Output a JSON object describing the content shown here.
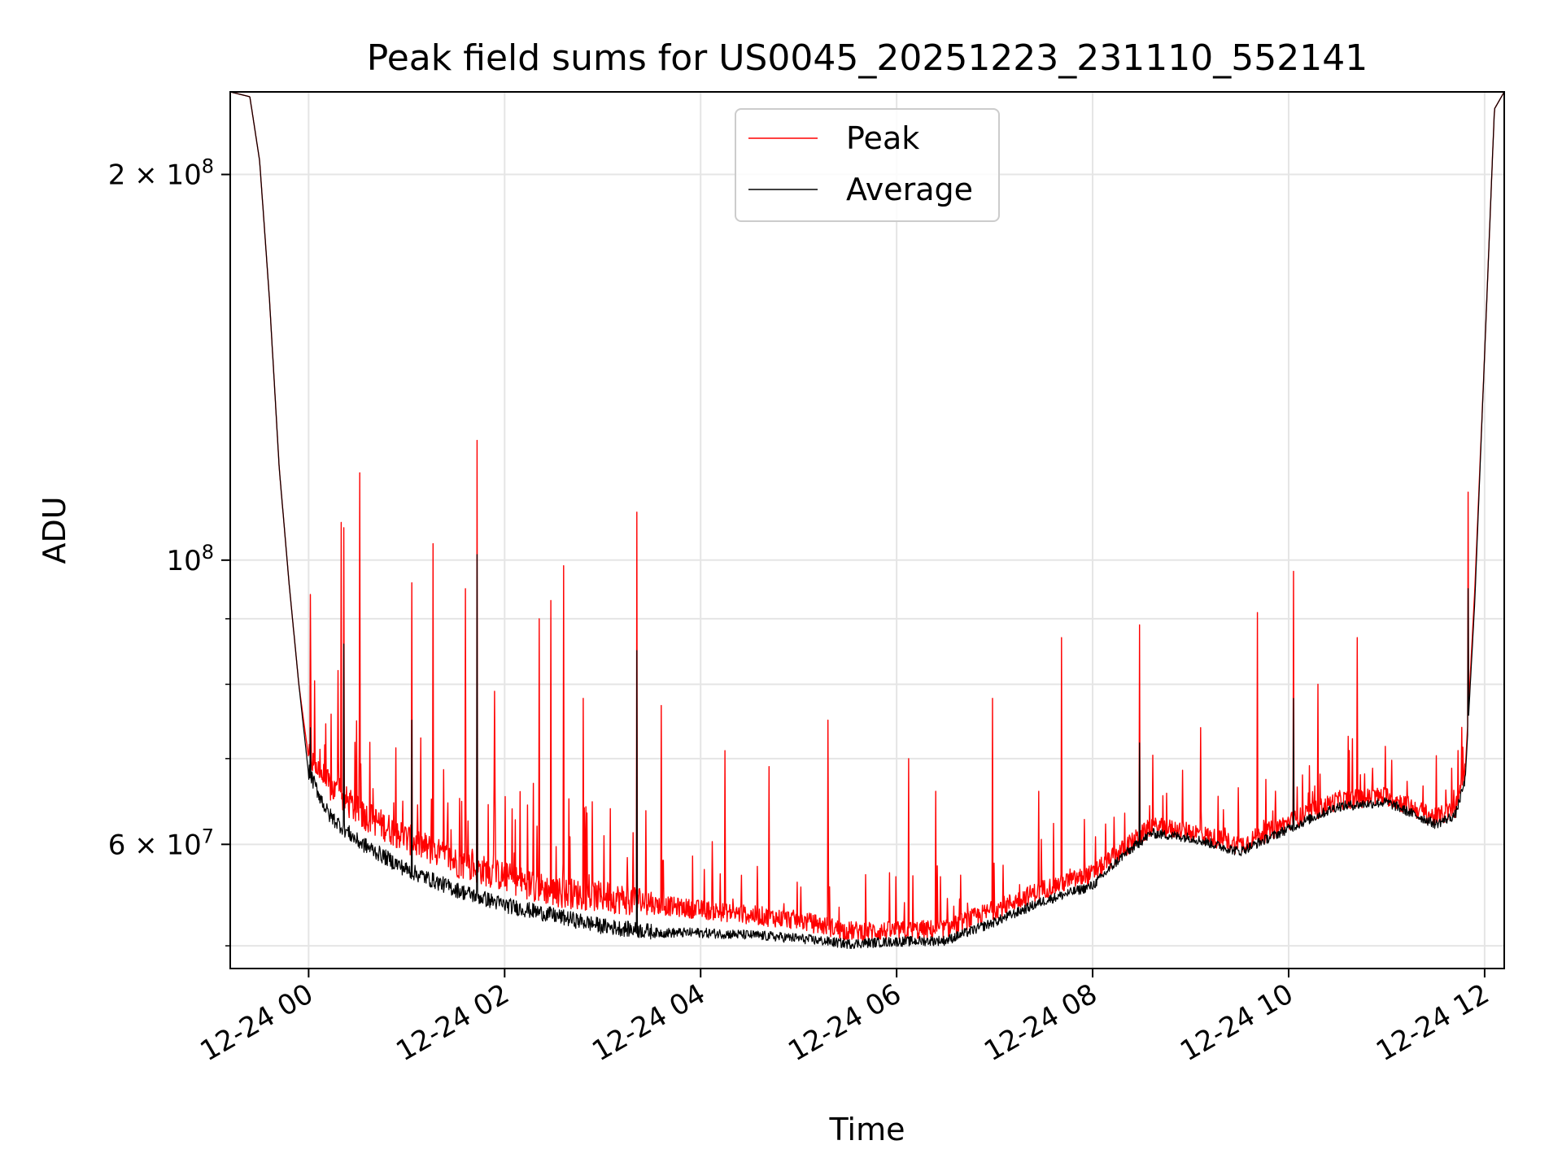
{
  "chart_data": {
    "type": "line",
    "title": "Peak field sums for US0045_20251223_231110_552141",
    "xlabel": "Time",
    "ylabel": "ADU",
    "yscale": "log",
    "grid": true,
    "legend_placement": "upper-center",
    "x_unit": "hours since 12-24 00:00",
    "xlim": [
      -0.8,
      12.2
    ],
    "ylim": [
      48000000,
      232000000
    ],
    "x_ticks": [
      {
        "value": 0,
        "label": "12-24 00"
      },
      {
        "value": 2,
        "label": "12-24 02"
      },
      {
        "value": 4,
        "label": "12-24 04"
      },
      {
        "value": 6,
        "label": "12-24 06"
      },
      {
        "value": 8,
        "label": "12-24 08"
      },
      {
        "value": 10,
        "label": "12-24 10"
      },
      {
        "value": 12,
        "label": "12-24 12"
      }
    ],
    "y_major_ticks": [
      {
        "value": 60000000,
        "mantissa": "6",
        "exponent": "7"
      },
      {
        "value": 100000000,
        "mantissa": "",
        "exponent": "8"
      },
      {
        "value": 200000000,
        "mantissa": "2",
        "exponent": "8"
      }
    ],
    "y_minor_ticks": [
      50000000,
      70000000,
      80000000,
      90000000
    ],
    "times_sign": "×",
    "tick_base": "10",
    "series": [
      {
        "name": "Peak",
        "color": "#ff0000",
        "baseline": [
          [
            -0.8,
            232000000
          ],
          [
            -0.6,
            230000000
          ],
          [
            -0.5,
            205000000
          ],
          [
            -0.4,
            160000000
          ],
          [
            -0.3,
            118000000
          ],
          [
            -0.2,
            96000000
          ],
          [
            -0.1,
            80000000
          ],
          [
            0.0,
            70000000
          ],
          [
            0.2,
            66000000
          ],
          [
            0.5,
            63000000
          ],
          [
            1.0,
            60000000
          ],
          [
            1.5,
            57500000
          ],
          [
            2.0,
            56000000
          ],
          [
            2.5,
            54500000
          ],
          [
            3.0,
            54000000
          ],
          [
            3.5,
            53500000
          ],
          [
            4.0,
            53000000
          ],
          [
            4.5,
            52500000
          ],
          [
            5.0,
            52000000
          ],
          [
            5.5,
            51000000
          ],
          [
            6.0,
            51000000
          ],
          [
            6.5,
            51200000
          ],
          [
            7.0,
            53000000
          ],
          [
            7.5,
            55000000
          ],
          [
            8.0,
            56500000
          ],
          [
            8.3,
            59000000
          ],
          [
            8.6,
            61500000
          ],
          [
            9.0,
            61000000
          ],
          [
            9.5,
            59500000
          ],
          [
            10.0,
            62000000
          ],
          [
            10.5,
            64500000
          ],
          [
            11.0,
            65000000
          ],
          [
            11.5,
            62500000
          ],
          [
            11.7,
            63500000
          ],
          [
            11.8,
            68000000
          ],
          [
            11.9,
            95000000
          ],
          [
            12.0,
            145000000
          ],
          [
            12.1,
            225000000
          ],
          [
            12.2,
            232000000
          ]
        ],
        "spikes": [
          [
            0.02,
            94000000
          ],
          [
            0.3,
            82000000
          ],
          [
            0.33,
            107000000
          ],
          [
            0.36,
            106000000
          ],
          [
            0.52,
            117000000
          ],
          [
            1.05,
            96000000
          ],
          [
            1.27,
            103000000
          ],
          [
            1.6,
            95000000
          ],
          [
            1.72,
            124000000
          ],
          [
            1.9,
            79000000
          ],
          [
            2.35,
            90000000
          ],
          [
            2.47,
            93000000
          ],
          [
            2.6,
            99000000
          ],
          [
            2.8,
            78000000
          ],
          [
            3.35,
            109000000
          ],
          [
            3.6,
            77000000
          ],
          [
            4.25,
            71000000
          ],
          [
            4.7,
            69000000
          ],
          [
            5.3,
            75000000
          ],
          [
            6.12,
            70000000
          ],
          [
            6.4,
            66000000
          ],
          [
            6.98,
            78000000
          ],
          [
            7.45,
            66000000
          ],
          [
            7.68,
            87000000
          ],
          [
            8.48,
            89000000
          ],
          [
            9.1,
            74000000
          ],
          [
            9.68,
            91000000
          ],
          [
            10.05,
            98000000
          ],
          [
            10.3,
            80000000
          ],
          [
            10.7,
            87000000
          ],
          [
            11.83,
            113000000
          ]
        ]
      },
      {
        "name": "Average",
        "color": "#000000",
        "baseline": [
          [
            -0.8,
            232000000
          ],
          [
            -0.6,
            230000000
          ],
          [
            -0.5,
            205000000
          ],
          [
            -0.4,
            160000000
          ],
          [
            -0.3,
            118000000
          ],
          [
            -0.2,
            96000000
          ],
          [
            -0.1,
            80000000
          ],
          [
            0.0,
            68000000
          ],
          [
            0.2,
            63000000
          ],
          [
            0.5,
            60000000
          ],
          [
            1.0,
            57000000
          ],
          [
            1.5,
            55000000
          ],
          [
            2.0,
            53500000
          ],
          [
            2.5,
            52500000
          ],
          [
            3.0,
            51500000
          ],
          [
            3.5,
            51000000
          ],
          [
            4.0,
            51000000
          ],
          [
            4.5,
            50800000
          ],
          [
            5.0,
            50500000
          ],
          [
            5.5,
            50000000
          ],
          [
            6.0,
            50200000
          ],
          [
            6.5,
            50300000
          ],
          [
            7.0,
            52000000
          ],
          [
            7.5,
            54000000
          ],
          [
            8.0,
            55500000
          ],
          [
            8.3,
            58500000
          ],
          [
            8.6,
            61000000
          ],
          [
            9.0,
            60500000
          ],
          [
            9.5,
            59000000
          ],
          [
            10.0,
            61500000
          ],
          [
            10.5,
            64000000
          ],
          [
            11.0,
            64500000
          ],
          [
            11.5,
            62000000
          ],
          [
            11.7,
            63000000
          ],
          [
            11.8,
            67000000
          ],
          [
            11.9,
            93000000
          ],
          [
            12.0,
            145000000
          ],
          [
            12.1,
            225000000
          ],
          [
            12.2,
            232000000
          ]
        ],
        "spikes": [
          [
            0.02,
            74000000
          ],
          [
            0.36,
            86000000
          ],
          [
            1.05,
            75000000
          ],
          [
            1.72,
            101000000
          ],
          [
            3.35,
            85000000
          ],
          [
            8.48,
            72000000
          ],
          [
            10.05,
            78000000
          ],
          [
            11.83,
            95000000
          ]
        ]
      }
    ]
  }
}
